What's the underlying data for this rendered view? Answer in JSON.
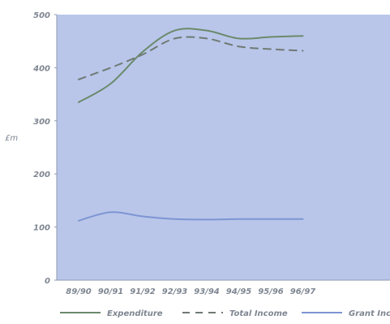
{
  "chart_data": {
    "type": "line",
    "x": [
      "89/90",
      "90/91",
      "91/92",
      "92/93",
      "93/94",
      "94/95",
      "95/96",
      "96/97"
    ],
    "ylabel": "£m",
    "ylim": [
      0,
      500
    ],
    "yticks": [
      0,
      100,
      200,
      300,
      400,
      500
    ],
    "grid": false,
    "legend_position": "bottom",
    "plot_background": "#b9c6ea",
    "series": [
      {
        "name": "Expenditure",
        "color": "#6b8a6b",
        "dash": "solid",
        "values": [
          335,
          370,
          430,
          470,
          470,
          455,
          458,
          460
        ]
      },
      {
        "name": "Total Income",
        "color": "#707a74",
        "dash": "dashed",
        "values": [
          378,
          400,
          425,
          455,
          455,
          440,
          435,
          432
        ]
      },
      {
        "name": "Grant Income",
        "color": "#7d95d2",
        "dash": "solid",
        "values": [
          112,
          128,
          120,
          115,
          114,
          115,
          115,
          115
        ]
      }
    ]
  }
}
